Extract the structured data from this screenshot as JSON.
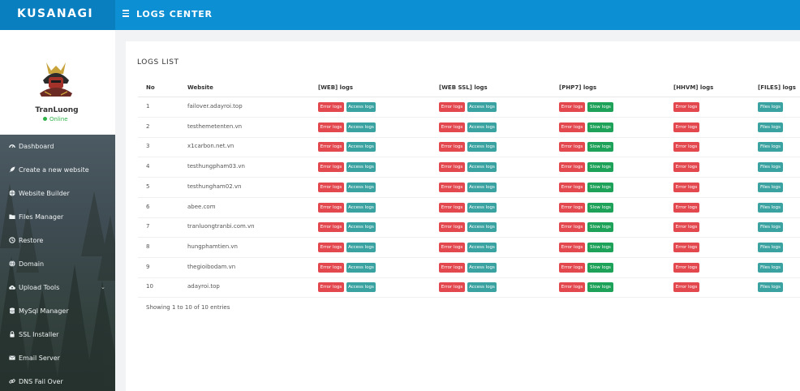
{
  "brand": {
    "name": "KUSANAGI"
  },
  "header": {
    "title": "LOGS CENTER"
  },
  "profile": {
    "name": "TranLuong",
    "status": "Online"
  },
  "sidebar": {
    "items": [
      {
        "label": "Dashboard",
        "icon": "dashboard-icon"
      },
      {
        "label": "Create a new website",
        "icon": "rocket-icon"
      },
      {
        "label": "Website Builder",
        "icon": "globe-icon"
      },
      {
        "label": "Files Manager",
        "icon": "folder-icon"
      },
      {
        "label": "Restore",
        "icon": "history-icon"
      },
      {
        "label": "Domain",
        "icon": "domain-icon"
      },
      {
        "label": "Upload Tools",
        "icon": "cloud-upload-icon",
        "has_children": true
      },
      {
        "label": "MySql Manager",
        "icon": "database-icon"
      },
      {
        "label": "SSL Installer",
        "icon": "lock-icon"
      },
      {
        "label": "Email Server",
        "icon": "envelope-icon"
      },
      {
        "label": "DNS Fail Over",
        "icon": "link-icon"
      }
    ]
  },
  "logs": {
    "title": "LOGS LIST",
    "columns": [
      "No",
      "Website",
      "[WEB] logs",
      "[WEB SSL] logs",
      "[PHP7] logs",
      "[HHVM] logs",
      "[FILES] logs"
    ],
    "buttons": {
      "error": "Error logs",
      "access": "Access logs",
      "slow": "Slow logs",
      "files": "Files logs"
    },
    "rows": [
      {
        "no": "1",
        "website": "failover.adayroi.top"
      },
      {
        "no": "2",
        "website": "testhemetenten.vn"
      },
      {
        "no": "3",
        "website": "x1carbon.net.vn"
      },
      {
        "no": "4",
        "website": "testhungpham03.vn"
      },
      {
        "no": "5",
        "website": "testhungham02.vn"
      },
      {
        "no": "6",
        "website": "abee.com"
      },
      {
        "no": "7",
        "website": "tranluongtranbi.com.vn"
      },
      {
        "no": "8",
        "website": "hungphamtien.vn"
      },
      {
        "no": "9",
        "website": "thegioibodam.vn"
      },
      {
        "no": "10",
        "website": "adayroi.top"
      }
    ],
    "footer": "Showing 1 to 10 of 10 entries"
  },
  "colors": {
    "header": "#0d8fd3",
    "brand_bg": "#0a7fc0",
    "error_button": "#e3484f",
    "access_button": "#3aa3a2",
    "slow_button": "#1ea259",
    "online": "#2fb24a"
  }
}
